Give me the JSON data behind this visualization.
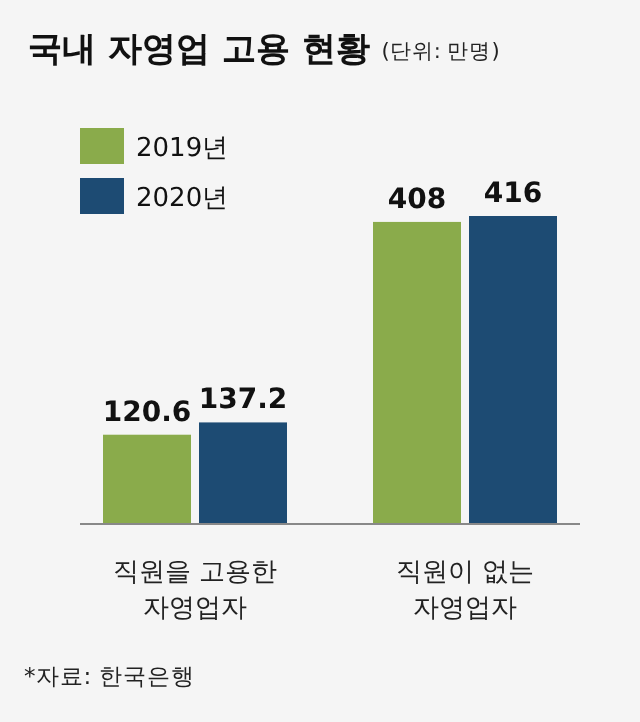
{
  "chart_data": {
    "type": "bar",
    "title": "국내 자영업 고용 현황",
    "subtitle": "(단위: 만명)",
    "categories": [
      "직원을 고용한\n자영업자",
      "직원이 없는\n자영업자"
    ],
    "series": [
      {
        "name": "2019년",
        "color": "#8aab4b",
        "values": [
          120.6,
          408
        ]
      },
      {
        "name": "2020년",
        "color": "#1d4b73",
        "values": [
          137.2,
          416
        ]
      }
    ],
    "data_labels": true,
    "legend": "top left",
    "annotations": [
      "*자료: 한국은행"
    ]
  }
}
